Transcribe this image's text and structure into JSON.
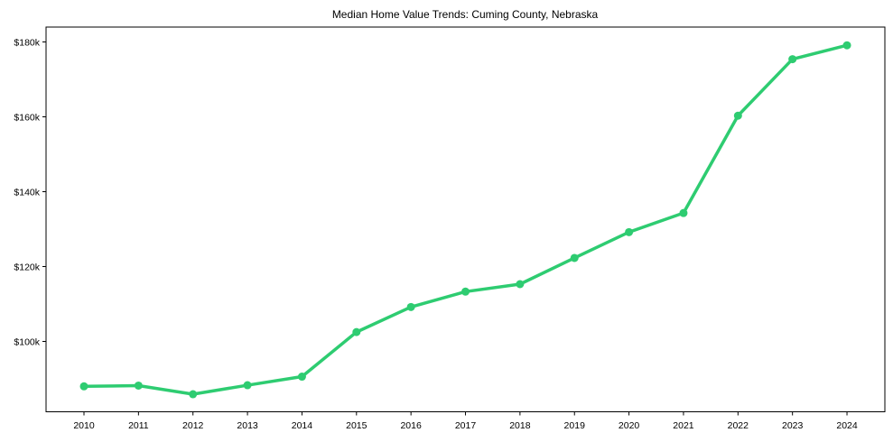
{
  "chart_data": {
    "type": "line",
    "title": "Median Home Value Trends: Cuming County, Nebraska",
    "xlabel": "",
    "ylabel": "",
    "categories": [
      "2010",
      "2011",
      "2012",
      "2013",
      "2014",
      "2015",
      "2016",
      "2017",
      "2018",
      "2019",
      "2020",
      "2021",
      "2022",
      "2023",
      "2024"
    ],
    "series": [
      {
        "name": "Median Home Value",
        "color": "#2ecc71",
        "values": [
          88000,
          88200,
          85900,
          88300,
          90600,
          102500,
          109200,
          113300,
          115300,
          122300,
          129200,
          134300,
          160300,
          175400,
          179100
        ]
      }
    ],
    "yticks": [
      100000,
      120000,
      140000,
      160000,
      180000
    ],
    "ytick_labels": [
      "$100k",
      "$120k",
      "$140k",
      "$160k",
      "$180k"
    ],
    "ylim": [
      82500,
      183400
    ],
    "grid": false,
    "legend": null
  }
}
